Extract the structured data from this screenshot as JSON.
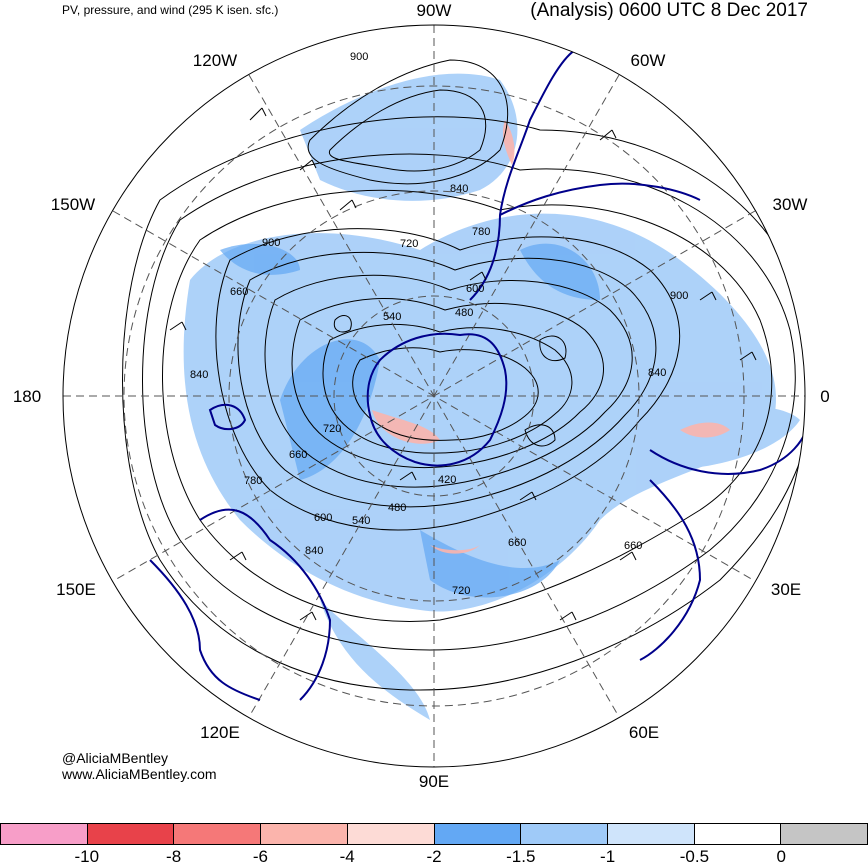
{
  "header": {
    "left_title": "PV, pressure, and wind (295 K isen. sfc.)",
    "right_title": "(Analysis) 0600 UTC 8 Dec 2017"
  },
  "map": {
    "projection": "south-polar-stereographic",
    "longitude_labels": [
      "90W",
      "60W",
      "30W",
      "0",
      "30E",
      "60E",
      "90E",
      "120E",
      "150E",
      "180",
      "150W",
      "120W"
    ],
    "contour_labels": [
      "900",
      "840",
      "780",
      "720",
      "660",
      "600",
      "540",
      "480",
      "420",
      "720",
      "780",
      "840",
      "900",
      "660",
      "600",
      "540",
      "480",
      "720",
      "660",
      "840",
      "900",
      "840",
      "660"
    ],
    "colors": {
      "coastline": "#00008b",
      "contour": "#000000",
      "gridline": "#555555"
    }
  },
  "credit": {
    "handle": "@AliciaMBentley",
    "url": "www.AliciaMBentley.com"
  },
  "colorbar": {
    "colors": [
      "#f79ec8",
      "#e8424a",
      "#f57878",
      "#fbb4ac",
      "#fddbd6",
      "#63a8f4",
      "#9fcaf8",
      "#cfe4fb",
      "#ffffff",
      "#c5c5c5"
    ],
    "ticks": [
      "-10",
      "-8",
      "-6",
      "-4",
      "-2",
      "-1.5",
      "-1",
      "-0.5",
      "0"
    ]
  }
}
